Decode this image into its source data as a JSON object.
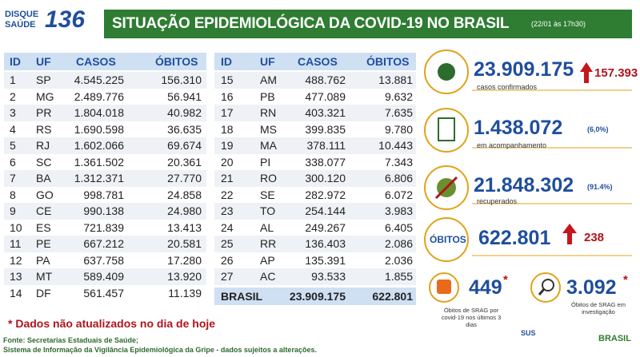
{
  "logo": {
    "line1": "DISQUE",
    "line2": "SAÚDE",
    "number": "136"
  },
  "header": {
    "title": "SITUAÇÃO EPIDEMIOLÓGICA DA COVID-19 NO BRASIL",
    "timestamp": "(22/01 às 17h30)"
  },
  "tables": [
    {
      "columns": [
        "ID",
        "UF",
        "CASOS",
        "ÓBITOS"
      ],
      "rows": [
        [
          "1",
          "SP",
          "4.545.225",
          "156.310"
        ],
        [
          "2",
          "MG",
          "2.489.776",
          "56.941"
        ],
        [
          "3",
          "PR",
          "1.804.018",
          "40.982"
        ],
        [
          "4",
          "RS",
          "1.690.598",
          "36.635"
        ],
        [
          "5",
          "RJ",
          "1.602.066",
          "69.674"
        ],
        [
          "6",
          "SC",
          "1.361.502",
          "20.361"
        ],
        [
          "7",
          "BA",
          "1.312.371",
          "27.770"
        ],
        [
          "8",
          "GO",
          "998.781",
          "24.858"
        ],
        [
          "9",
          "CE",
          "990.138",
          "24.980"
        ],
        [
          "10",
          "ES",
          "721.839",
          "13.413"
        ],
        [
          "11",
          "PE",
          "667.212",
          "20.581"
        ],
        [
          "12",
          "PA",
          "637.758",
          "17.280"
        ],
        [
          "13",
          "MT",
          "589.409",
          "13.920"
        ],
        [
          "14",
          "DF",
          "561.457",
          "11.139"
        ]
      ]
    },
    {
      "columns": [
        "ID",
        "UF",
        "CASOS",
        "ÓBITOS"
      ],
      "rows": [
        [
          "15",
          "AM",
          "488.762",
          "13.881"
        ],
        [
          "16",
          "PB",
          "477.089",
          "9.632"
        ],
        [
          "17",
          "RN",
          "403.321",
          "7.635"
        ],
        [
          "18",
          "MS",
          "399.835",
          "9.780"
        ],
        [
          "19",
          "MA",
          "378.111",
          "10.443"
        ],
        [
          "20",
          "PI",
          "338.077",
          "7.343"
        ],
        [
          "21",
          "RO",
          "300.120",
          "6.806"
        ],
        [
          "22",
          "SE",
          "282.972",
          "6.072"
        ],
        [
          "23",
          "TO",
          "254.144",
          "3.983"
        ],
        [
          "24",
          "AL",
          "249.267",
          "6.405"
        ],
        [
          "25",
          "RR",
          "136.403",
          "2.086"
        ],
        [
          "26",
          "AP",
          "135.391",
          "2.036"
        ],
        [
          "27",
          "AC",
          "93.533",
          "1.855"
        ]
      ],
      "total": [
        "BRASIL",
        "23.909.175",
        "622.801"
      ]
    }
  ],
  "stats": {
    "confirmed": {
      "value": "23.909.175",
      "change": "157.393",
      "label": "casos confirmados"
    },
    "monitoring": {
      "value": "1.438.072",
      "share": "(6,0%)",
      "label": "em acompanhamento"
    },
    "recovered": {
      "value": "21.848.302",
      "share": "(91.4%)",
      "label": "recuperados"
    },
    "deaths": {
      "badge": "ÓBITOS",
      "value": "622.801",
      "change": "238"
    },
    "srag_recent": {
      "value": "449",
      "mark": "*",
      "label": "Óbitos de SRAG por covid-19 nos últimos 3 dias"
    },
    "srag_investigation": {
      "value": "3.092",
      "mark": "*",
      "label": "Óbitos de SRAG em investigação"
    }
  },
  "footer": {
    "note": "* Dados não atualizados no dia de hoje",
    "source1": "Fonte: Secretarias Estaduais de Saúde;",
    "source2": "Sistema de Informação da Vigilância Epidemiológica da Gripe - dados sujeitos a alterações.",
    "logo_sus": "SUS",
    "logo_gov": "BRASIL"
  }
}
